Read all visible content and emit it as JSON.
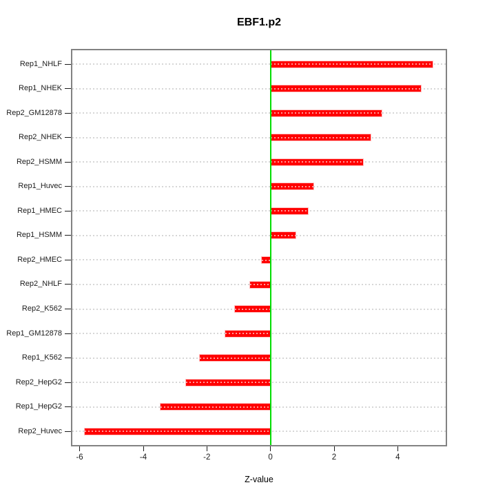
{
  "chart_data": {
    "type": "bar",
    "orientation": "horizontal",
    "title": "EBF1.p2",
    "xlabel": "Z-value",
    "ylabel": "",
    "categories": [
      "Rep1_NHLF",
      "Rep1_NHEK",
      "Rep2_GM12878",
      "Rep2_NHEK",
      "Rep2_HSMM",
      "Rep1_Huvec",
      "Rep1_HMEC",
      "Rep1_HSMM",
      "Rep2_HMEC",
      "Rep2_NHLF",
      "Rep2_K562",
      "Rep1_GM12878",
      "Rep1_K562",
      "Rep2_HepG2",
      "Rep1_HepG2",
      "Rep2_Huvec"
    ],
    "values": [
      5.1,
      4.74,
      3.5,
      3.16,
      2.92,
      1.35,
      1.17,
      0.78,
      -0.27,
      -0.65,
      -1.12,
      -1.42,
      -2.22,
      -2.65,
      -3.45,
      -5.84
    ],
    "x_ticks": [
      -6,
      -4,
      -2,
      0,
      2,
      4
    ],
    "xlim": [
      -6.23,
      5.51
    ],
    "grid": "dotted-horizontal-per-category",
    "legend": "none",
    "zero_reference_line": 0,
    "colors": {
      "bar": "#ff0000",
      "bar_dash_overlay": "#ff9b9b",
      "zero_line": "#00dd00",
      "grid_line": "#d6d6d6",
      "box_border": "#828282",
      "axis_text": "#1a1a1a",
      "background": "#ffffff"
    }
  }
}
